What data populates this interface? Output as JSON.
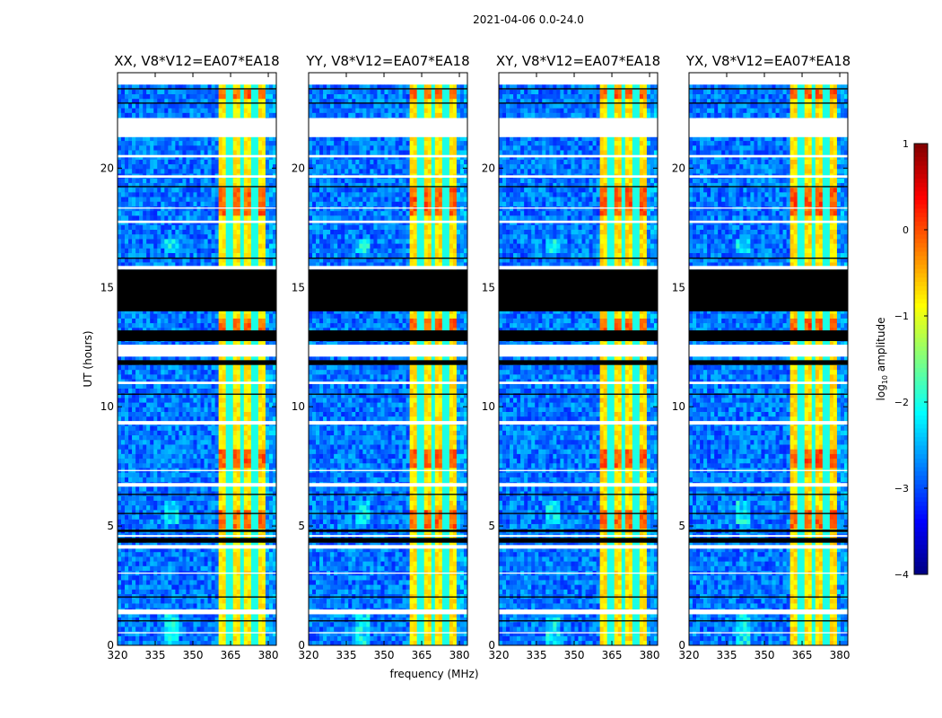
{
  "chart_data": {
    "type": "heatmap",
    "suptitle": "2021-04-06 0.0-24.0",
    "xlabel": "frequency (MHz)",
    "ylabel": "UT (hours)",
    "xlim": [
      320,
      383.2
    ],
    "ylim": [
      0,
      24
    ],
    "data_time_range": [
      0,
      23.5
    ],
    "xticks": [
      320,
      335,
      350,
      365,
      380
    ],
    "yticks": [
      0,
      5,
      10,
      15,
      20
    ],
    "panels": [
      {
        "title": "XX, V8*V12=EA07*EA18",
        "rfi_scale": 1.0
      },
      {
        "title": "YY, V8*V12=EA07*EA18",
        "rfi_scale": 0.95
      },
      {
        "title": "XY, V8*V12=EA07*EA18",
        "rfi_scale": 0.9
      },
      {
        "title": "YX, V8*V12=EA07*EA18",
        "rfi_scale": 0.9
      }
    ],
    "background_log_amplitude": -2.8,
    "rfi_band_mhz": [
      360,
      379.3
    ],
    "rfi_band_log_amplitude": -0.8,
    "rfi_channel_gaps_mhz": [
      364.5,
      369.5,
      374.5
    ],
    "rfi_strong_periods_hours": [
      [
        4.9,
        5.6
      ],
      [
        7.5,
        8.3
      ],
      [
        13.2,
        13.8
      ],
      [
        18.0,
        19.2
      ],
      [
        23.0,
        23.4
      ]
    ],
    "flagged_white_hours": [
      [
        21.3,
        22.1
      ],
      [
        15.75,
        15.9
      ],
      [
        12.1,
        12.6
      ],
      [
        10.95,
        11.05
      ],
      [
        9.25,
        9.4
      ],
      [
        6.65,
        6.8
      ],
      [
        7.3,
        7.35
      ],
      [
        4.05,
        4.2
      ],
      [
        4.55,
        4.62
      ],
      [
        1.3,
        1.5
      ],
      [
        0.5,
        0.55
      ],
      [
        17.7,
        17.8
      ],
      [
        18.3,
        18.35
      ],
      [
        19.6,
        19.7
      ],
      [
        20.45,
        20.55
      ],
      [
        3.0,
        3.05
      ]
    ],
    "flagged_black_hours": [
      [
        14.0,
        15.75
      ],
      [
        12.75,
        13.2
      ],
      [
        11.75,
        11.95
      ],
      [
        4.3,
        4.5
      ],
      [
        4.75,
        4.85
      ],
      [
        23.3,
        23.35
      ],
      [
        22.7,
        22.75
      ],
      [
        2.0,
        2.05
      ],
      [
        5.5,
        5.55
      ],
      [
        6.3,
        6.35
      ],
      [
        10.5,
        10.55
      ],
      [
        16.2,
        16.25
      ],
      [
        19.2,
        19.25
      ],
      [
        1.0,
        1.05
      ]
    ],
    "colorbar": {
      "label_prefix": "log",
      "label_sub": "10",
      "label_suffix": " amplitude",
      "range": [
        -4,
        1
      ],
      "ticks": [
        1,
        0,
        -1,
        -2,
        -3,
        -4
      ],
      "tick_labels": [
        "1",
        "0",
        "−1",
        "−2",
        "−3",
        "−4"
      ],
      "colormap": "jet"
    }
  }
}
